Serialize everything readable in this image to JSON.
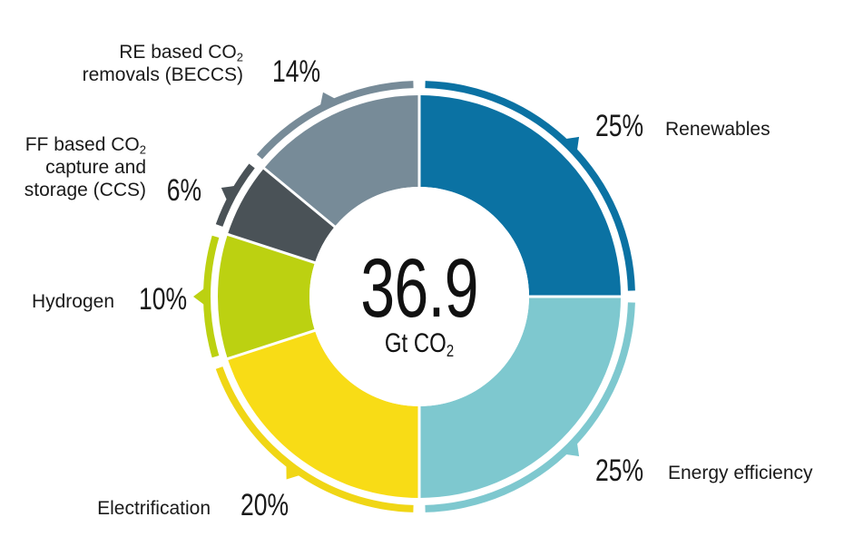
{
  "chart_data": {
    "type": "pie",
    "style": "donut",
    "center": {
      "value": "36.9",
      "unit": "Gt CO",
      "unit_sub": "2"
    },
    "slices": [
      {
        "name": "Renewables",
        "name_lines": [
          [
            "Renewables",
            ""
          ]
        ],
        "percent": 25,
        "label": "25%",
        "color": "#0b72a3",
        "ring_color": "#0b72a3"
      },
      {
        "name": "Energy efficiency",
        "name_lines": [
          [
            "Energy efficiency",
            ""
          ]
        ],
        "percent": 25,
        "label": "25%",
        "color": "#7ec8cf",
        "ring_color": "#7ec8cf"
      },
      {
        "name": "Electrification",
        "name_lines": [
          [
            "Electrification",
            ""
          ]
        ],
        "percent": 20,
        "label": "20%",
        "color": "#f8dc16",
        "ring_color": "#f0d615"
      },
      {
        "name": "Hydrogen",
        "name_lines": [
          [
            "Hydrogen",
            ""
          ]
        ],
        "percent": 10,
        "label": "10%",
        "color": "#bcd111",
        "ring_color": "#bcd111"
      },
      {
        "name": "FF based CO2 capture and storage (CCS)",
        "name_lines": [
          [
            "FF based CO",
            "2"
          ],
          [
            "capture and",
            ""
          ],
          [
            "storage (CCS)",
            ""
          ]
        ],
        "percent": 6,
        "label": "6%",
        "color": "#4a5257",
        "ring_color": "#4a5257"
      },
      {
        "name": "RE based CO2 removals (BECCS)",
        "name_lines": [
          [
            "RE based CO",
            "2"
          ],
          [
            "removals (BECCS)",
            ""
          ]
        ],
        "percent": 14,
        "label": "14%",
        "color": "#778b98",
        "ring_color": "#778b98"
      }
    ]
  }
}
